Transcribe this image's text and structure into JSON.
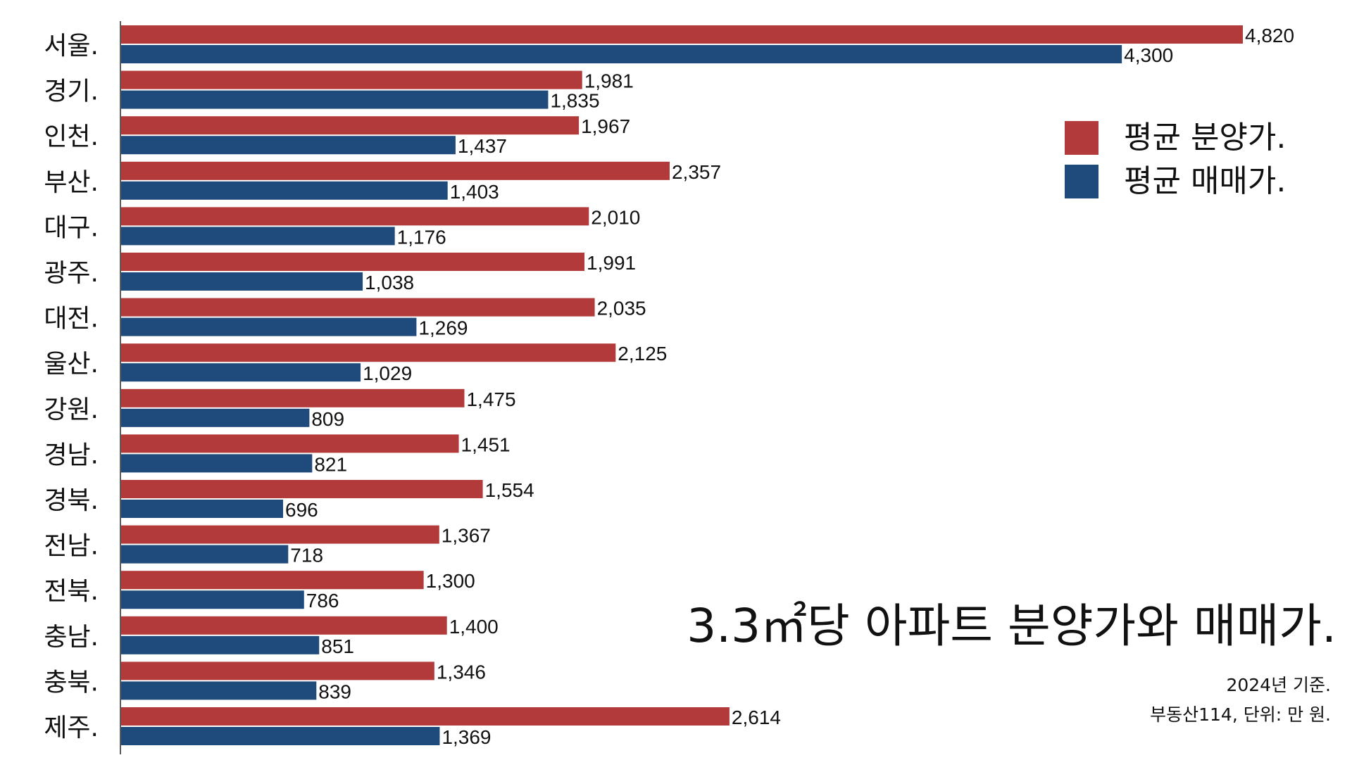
{
  "chart_data": {
    "type": "bar",
    "orientation": "horizontal",
    "title": "3.3㎡당 아파트 분양가와 매매가.",
    "subtitle_lines": [
      "2024년 기준.",
      "부동산114, 단위: 만 원."
    ],
    "categories": [
      "서울.",
      "경기.",
      "인천.",
      "부산.",
      "대구.",
      "광주.",
      "대전.",
      "울산.",
      "강원.",
      "경남.",
      "경북.",
      "전남.",
      "전북.",
      "충남.",
      "충북.",
      "제주."
    ],
    "series": [
      {
        "name": "평균 분양가.",
        "color": "#b23a3a",
        "values": [
          4820,
          1981,
          1967,
          2357,
          2010,
          1991,
          2035,
          2125,
          1475,
          1451,
          1554,
          1367,
          1300,
          1400,
          1346,
          2614
        ],
        "labels": [
          "4,820",
          "1,981",
          "1,967",
          "2,357",
          "2,010",
          "1,991",
          "2,035",
          "2,125",
          "1,475",
          "1,451",
          "1,554",
          "1,367",
          "1,300",
          "1,400",
          "1,346",
          "2,614"
        ]
      },
      {
        "name": "평균 매매가.",
        "color": "#1f4a7c",
        "values": [
          4300,
          1835,
          1437,
          1403,
          1176,
          1038,
          1269,
          1029,
          809,
          821,
          696,
          718,
          786,
          851,
          839,
          1369
        ],
        "labels": [
          "4,300",
          "1,835",
          "1,437",
          "1,403",
          "1,176",
          "1,038",
          "1,269",
          "1,029",
          "809",
          "821",
          "696",
          "718",
          "786",
          "851",
          "839",
          "1,369"
        ]
      }
    ],
    "xlim": [
      0,
      4820
    ],
    "grid": false,
    "legend_position": "top-right",
    "x_axis_visible": false,
    "y_axis_line": true
  }
}
